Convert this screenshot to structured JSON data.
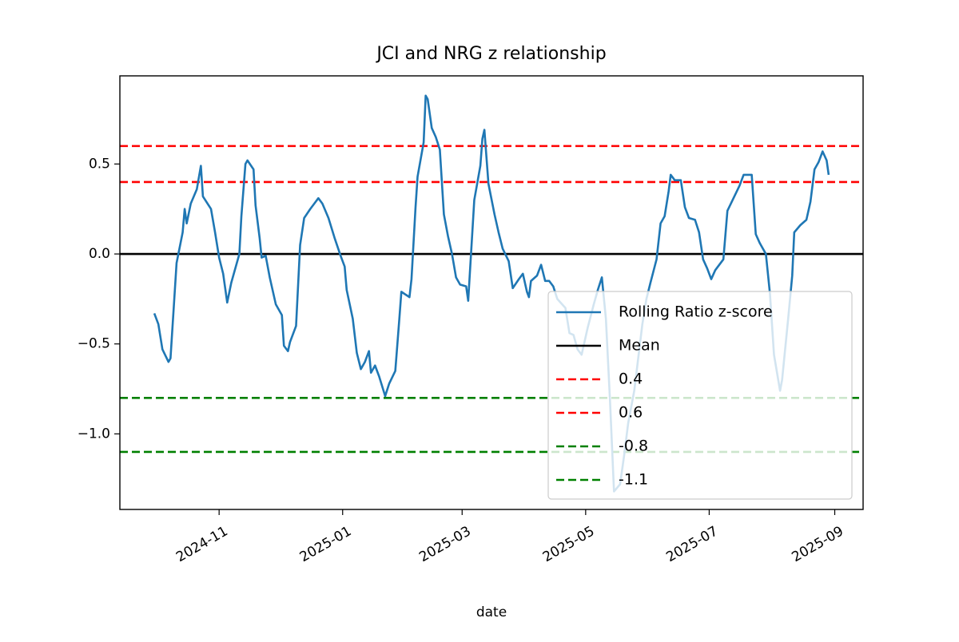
{
  "chart_data": {
    "type": "line",
    "title": "JCI and NRG z relationship",
    "x_label": "date",
    "xlim": [
      "2024-09-13",
      "2025-09-15"
    ],
    "xticks": [
      {
        "value": "2024-11-01",
        "label": "2024-11"
      },
      {
        "value": "2025-01-01",
        "label": "2025-01"
      },
      {
        "value": "2025-03-01",
        "label": "2025-03"
      },
      {
        "value": "2025-05-01",
        "label": "2025-05"
      },
      {
        "value": "2025-07-01",
        "label": "2025-07"
      },
      {
        "value": "2025-09-01",
        "label": "2025-09"
      }
    ],
    "ylim": [
      -1.42,
      0.99
    ],
    "yticks": [
      0.5,
      {
        "value": 0,
        "label": "0.0"
      },
      {
        "value": -0.5,
        "label": "−0.5"
      },
      {
        "value": -1,
        "label": "−1.0"
      }
    ],
    "grid": false,
    "legend": "lower right",
    "x": [
      "2024-09-30",
      "2024-10-02",
      "2024-10-04",
      "2024-10-07",
      "2024-10-08",
      "2024-10-11",
      "2024-10-14",
      "2024-10-15",
      "2024-10-16",
      "2024-10-18",
      "2024-10-21",
      "2024-10-23",
      "2024-10-24",
      "2024-10-28",
      "2024-10-30",
      "2024-11-01",
      "2024-11-03",
      "2024-11-05",
      "2024-11-07",
      "2024-11-11",
      "2024-11-12",
      "2024-11-14",
      "2024-11-15",
      "2024-11-18",
      "2024-11-19",
      "2024-11-21",
      "2024-11-22",
      "2024-11-24",
      "2024-11-26",
      "2024-11-29",
      "2024-12-02",
      "2024-12-03",
      "2024-12-05",
      "2024-12-06",
      "2024-12-09",
      "2024-12-11",
      "2024-12-13",
      "2024-12-16",
      "2024-12-18",
      "2024-12-20",
      "2024-12-22",
      "2024-12-25",
      "2024-12-28",
      "2024-12-31",
      "2025-01-02",
      "2025-01-03",
      "2025-01-06",
      "2025-01-08",
      "2025-01-10",
      "2025-01-12",
      "2025-01-14",
      "2025-01-15",
      "2025-01-17",
      "2025-01-19",
      "2025-01-22",
      "2025-01-24",
      "2025-01-27",
      "2025-01-29",
      "2025-01-30",
      "2025-02-03",
      "2025-02-04",
      "2025-02-06",
      "2025-02-07",
      "2025-02-10",
      "2025-02-11",
      "2025-02-12",
      "2025-02-14",
      "2025-02-16",
      "2025-02-18",
      "2025-02-20",
      "2025-02-22",
      "2025-02-24",
      "2025-02-26",
      "2025-02-28",
      "2025-03-03",
      "2025-03-04",
      "2025-03-07",
      "2025-03-10",
      "2025-03-11",
      "2025-03-12",
      "2025-03-14",
      "2025-03-17",
      "2025-03-19",
      "2025-03-21",
      "2025-03-24",
      "2025-03-26",
      "2025-03-29",
      "2025-03-31",
      "2025-04-02",
      "2025-04-03",
      "2025-04-04",
      "2025-04-07",
      "2025-04-09",
      "2025-04-11",
      "2025-04-13",
      "2025-04-15",
      "2025-04-17",
      "2025-04-21",
      "2025-04-23",
      "2025-04-25",
      "2025-04-27",
      "2025-04-29",
      "2025-05-02",
      "2025-05-05",
      "2025-05-07",
      "2025-05-09",
      "2025-05-11",
      "2025-05-13",
      "2025-05-15",
      "2025-05-18",
      "2025-05-20",
      "2025-05-22",
      "2025-05-25",
      "2025-05-29",
      "2025-05-31",
      "2025-06-02",
      "2025-06-05",
      "2025-06-07",
      "2025-06-09",
      "2025-06-11",
      "2025-06-12",
      "2025-06-14",
      "2025-06-17",
      "2025-06-19",
      "2025-06-21",
      "2025-06-24",
      "2025-06-26",
      "2025-06-28",
      "2025-06-30",
      "2025-07-02",
      "2025-07-04",
      "2025-07-08",
      "2025-07-10",
      "2025-07-13",
      "2025-07-16",
      "2025-07-18",
      "2025-07-20",
      "2025-07-22",
      "2025-07-24",
      "2025-07-26",
      "2025-07-29",
      "2025-07-31",
      "2025-08-02",
      "2025-08-05",
      "2025-08-06",
      "2025-08-09",
      "2025-08-11",
      "2025-08-12",
      "2025-08-15",
      "2025-08-18",
      "2025-08-20",
      "2025-08-22",
      "2025-08-24",
      "2025-08-26",
      "2025-08-28",
      "2025-08-29"
    ],
    "series": [
      {
        "name": "Rolling Ratio z-score",
        "color": "#1f77b4",
        "values": [
          -0.33,
          -0.39,
          -0.53,
          -0.6,
          -0.58,
          -0.05,
          0.12,
          0.25,
          0.17,
          0.28,
          0.36,
          0.49,
          0.32,
          0.25,
          0.12,
          -0.02,
          -0.11,
          -0.27,
          -0.16,
          0.0,
          0.21,
          0.5,
          0.52,
          0.47,
          0.27,
          0.09,
          -0.02,
          -0.01,
          -0.13,
          -0.28,
          -0.34,
          -0.51,
          -0.54,
          -0.49,
          -0.4,
          0.05,
          0.2,
          0.25,
          0.28,
          0.31,
          0.28,
          0.2,
          0.09,
          -0.01,
          -0.07,
          -0.2,
          -0.36,
          -0.55,
          -0.64,
          -0.6,
          -0.54,
          -0.66,
          -0.62,
          -0.68,
          -0.79,
          -0.72,
          -0.65,
          -0.36,
          -0.21,
          -0.24,
          -0.14,
          0.26,
          0.43,
          0.62,
          0.88,
          0.86,
          0.7,
          0.65,
          0.58,
          0.22,
          0.1,
          0.0,
          -0.13,
          -0.17,
          -0.18,
          -0.26,
          0.3,
          0.49,
          0.64,
          0.69,
          0.39,
          0.22,
          0.12,
          0.03,
          -0.04,
          -0.19,
          -0.14,
          -0.11,
          -0.21,
          -0.24,
          -0.15,
          -0.12,
          -0.06,
          -0.15,
          -0.15,
          -0.18,
          -0.25,
          -0.3,
          -0.44,
          -0.45,
          -0.53,
          -0.56,
          -0.41,
          -0.28,
          -0.2,
          -0.13,
          -0.36,
          -0.81,
          -1.32,
          -1.28,
          -1.12,
          -0.94,
          -0.76,
          -0.39,
          -0.25,
          -0.16,
          -0.03,
          0.17,
          0.21,
          0.35,
          0.44,
          0.41,
          0.41,
          0.26,
          0.2,
          0.19,
          0.12,
          -0.03,
          -0.08,
          -0.14,
          -0.09,
          -0.03,
          0.24,
          0.31,
          0.38,
          0.44,
          0.44,
          0.44,
          0.11,
          0.06,
          0.0,
          -0.22,
          -0.56,
          -0.76,
          -0.7,
          -0.36,
          -0.12,
          0.12,
          0.16,
          0.19,
          0.29,
          0.47,
          0.51,
          0.57,
          0.52,
          0.44
        ]
      }
    ],
    "hlines": [
      {
        "name": "Mean",
        "value": 0,
        "color": "#000000",
        "dashed": false
      },
      {
        "name": "0.4",
        "value": 0.4,
        "color": "#ff0000",
        "dashed": true
      },
      {
        "name": "0.6",
        "value": 0.6,
        "color": "#ff0000",
        "dashed": true
      },
      {
        "name": "-0.8",
        "value": -0.8,
        "color": "#008000",
        "dashed": true
      },
      {
        "name": "-1.1",
        "value": -1.1,
        "color": "#008000",
        "dashed": true
      }
    ]
  }
}
